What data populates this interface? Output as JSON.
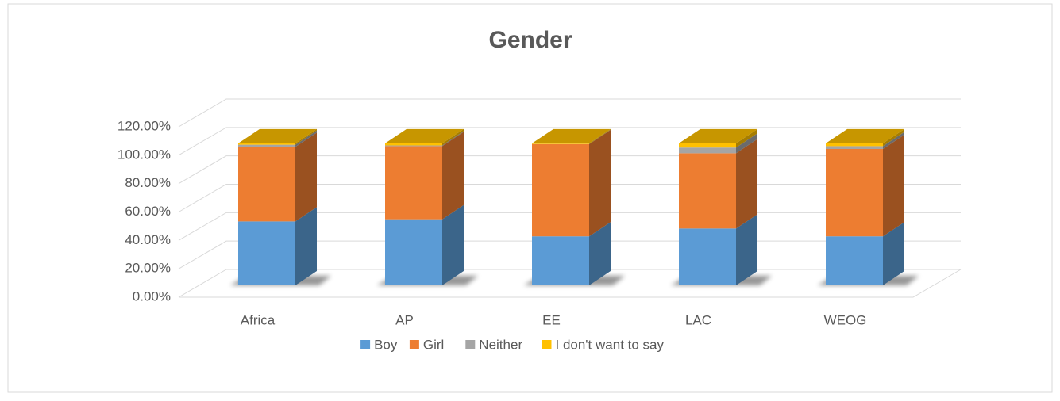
{
  "chart_data": {
    "type": "bar3d_stacked",
    "title": "Gender",
    "categories": [
      "Africa",
      "AP",
      "EE",
      "LAC",
      "WEOG"
    ],
    "series": [
      {
        "name": "Boy",
        "color": "#5b9bd5",
        "values": [
          45,
          46.5,
          34.5,
          40,
          34.5
        ]
      },
      {
        "name": "Girl",
        "color": "#ed7d31",
        "values": [
          52.5,
          51.5,
          64.9,
          53,
          61.5
        ]
      },
      {
        "name": "Neither",
        "color": "#a5a5a5",
        "values": [
          1.5,
          0.5,
          0.1,
          4,
          2
        ]
      },
      {
        "name": "I don't want to say",
        "color": "#ffc000",
        "values": [
          1,
          1.5,
          0.5,
          3,
          2
        ]
      }
    ],
    "ylim": [
      0,
      120
    ],
    "yticks": [
      {
        "value": 0,
        "label": "0.00%"
      },
      {
        "value": 20,
        "label": "20.00%"
      },
      {
        "value": 40,
        "label": "40.00%"
      },
      {
        "value": 60,
        "label": "60.00%"
      },
      {
        "value": 80,
        "label": "80.00%"
      },
      {
        "value": 100,
        "label": "100.00%"
      },
      {
        "value": 120,
        "label": "120.00%"
      }
    ],
    "grid": true,
    "legend": "bottom"
  }
}
